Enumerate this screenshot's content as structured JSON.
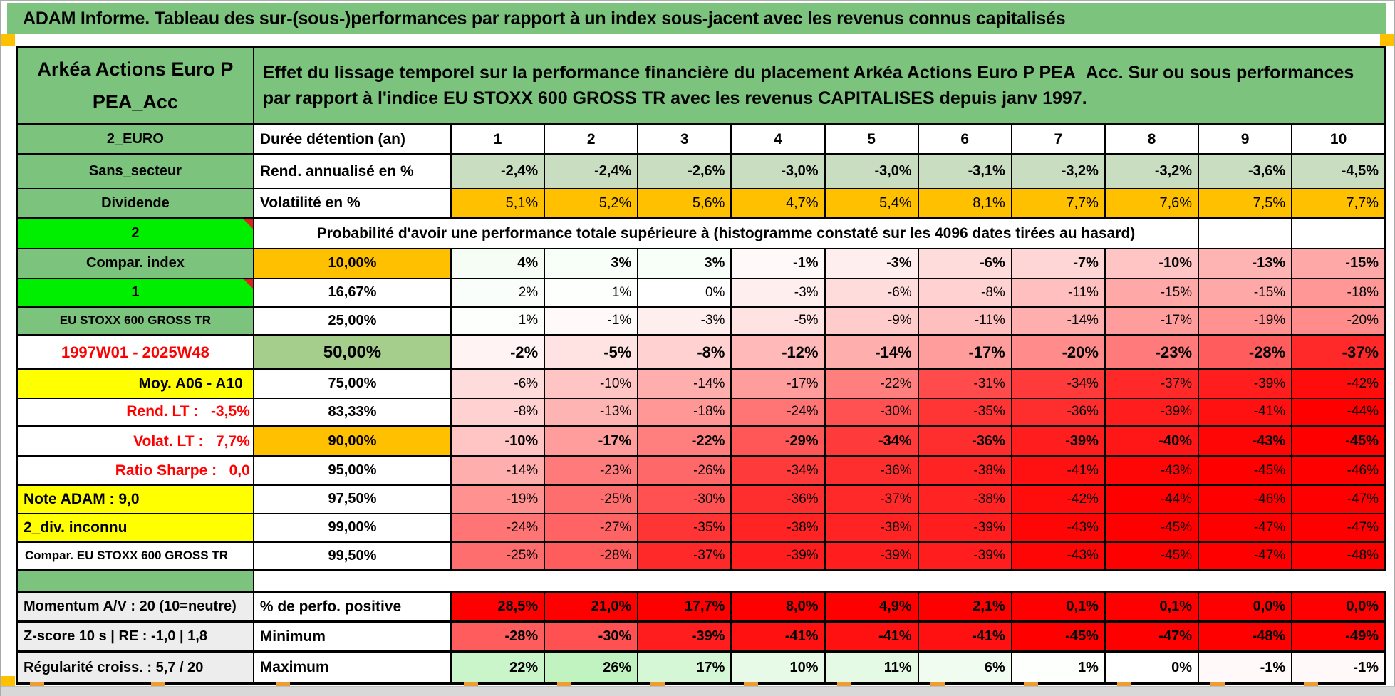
{
  "palette": {
    "header_green": "#7CC47D",
    "light_green_row": "#C9DDC1",
    "median_green": "#A5CD8C",
    "bright_green": "#00EE00",
    "orange": "#FFC000",
    "yellow": "#FFFF00",
    "alert_red": "#FF0000",
    "red_text": "#FF0000",
    "grey_label": "#EDEDED",
    "bottom_strip_grey": "#D8D8D8",
    "marker_orange": "#ED9D31"
  },
  "title_bar": {
    "text": "ADAM Informe. Tableau des sur-(sous-)performances par rapport à un index sous-jacent avec les revenus connus capitalisés"
  },
  "header": {
    "fund_name_lines": [
      "Arkéa Actions Euro P",
      "PEA_Acc"
    ],
    "description": "Effet du lissage temporel sur la performance financière du placement Arkéa Actions Euro P PEA_Acc. Sur ou sous performances par rapport à l'indice EU STOXX 600 GROSS TR avec les revenus CAPITALISES depuis janv 1997."
  },
  "chart_data": {
    "type": "table",
    "duration_row": {
      "label": "2_EURO",
      "metric": "Durée détention (an)",
      "values": [
        "1",
        "2",
        "3",
        "4",
        "5",
        "6",
        "7",
        "8",
        "9",
        "10"
      ]
    },
    "annualized_return_row": {
      "label": "Sans_secteur",
      "metric": "Rend. annualisé en %",
      "values": [
        "-2,4%",
        "-2,4%",
        "-2,6%",
        "-3,0%",
        "-3,0%",
        "-3,1%",
        "-3,2%",
        "-3,2%",
        "-3,6%",
        "-4,5%"
      ]
    },
    "volatility_row": {
      "label": "Dividende",
      "metric": "Volatilité en %",
      "values": [
        "5,1%",
        "5,2%",
        "5,6%",
        "4,7%",
        "5,4%",
        "8,1%",
        "7,7%",
        "7,6%",
        "7,5%",
        "7,7%"
      ]
    },
    "probability_banner": {
      "label": "2",
      "text": "Probabilité d'avoir une performance totale supérieure à (histogramme constaté sur les 4096 dates tirées au hasard)"
    },
    "probability_rows": [
      {
        "label": "Compar. index",
        "quantile": "10,00%",
        "values": [
          "4%",
          "3%",
          "3%",
          "-1%",
          "-3%",
          "-6%",
          "-7%",
          "-10%",
          "-13%",
          "-15%"
        ]
      },
      {
        "label": "1",
        "quantile": "16,67%",
        "values": [
          "2%",
          "1%",
          "0%",
          "-3%",
          "-6%",
          "-8%",
          "-11%",
          "-15%",
          "-15%",
          "-18%"
        ]
      },
      {
        "label": "EU STOXX 600 GROSS TR",
        "quantile": "25,00%",
        "values": [
          "1%",
          "-1%",
          "-3%",
          "-5%",
          "-9%",
          "-11%",
          "-14%",
          "-17%",
          "-19%",
          "-20%"
        ]
      },
      {
        "label": "1997W01 - 2025W48",
        "quantile": "50,00%",
        "values": [
          "-2%",
          "-5%",
          "-8%",
          "-12%",
          "-14%",
          "-17%",
          "-20%",
          "-23%",
          "-28%",
          "-37%"
        ]
      },
      {
        "label": "Moy. A06 - A10",
        "quantile": "75,00%",
        "values": [
          "-6%",
          "-10%",
          "-14%",
          "-17%",
          "-22%",
          "-31%",
          "-34%",
          "-37%",
          "-39%",
          "-42%"
        ]
      },
      {
        "label": "Rend. LT :   -3,5%",
        "quantile": "83,33%",
        "values": [
          "-8%",
          "-13%",
          "-18%",
          "-24%",
          "-30%",
          "-35%",
          "-36%",
          "-39%",
          "-41%",
          "-44%"
        ]
      },
      {
        "label": "Volat. LT :   7,7%",
        "quantile": "90,00%",
        "values": [
          "-10%",
          "-17%",
          "-22%",
          "-29%",
          "-34%",
          "-36%",
          "-39%",
          "-40%",
          "-43%",
          "-45%"
        ]
      },
      {
        "label": "Ratio Sharpe :   0,0",
        "quantile": "95,00%",
        "values": [
          "-14%",
          "-23%",
          "-26%",
          "-34%",
          "-36%",
          "-38%",
          "-41%",
          "-43%",
          "-45%",
          "-46%"
        ]
      },
      {
        "label": "Note ADAM : 9,0",
        "quantile": "97,50%",
        "values": [
          "-19%",
          "-25%",
          "-30%",
          "-36%",
          "-37%",
          "-38%",
          "-42%",
          "-44%",
          "-46%",
          "-47%"
        ]
      },
      {
        "label": "2_div. inconnu",
        "quantile": "99,00%",
        "values": [
          "-24%",
          "-27%",
          "-35%",
          "-38%",
          "-38%",
          "-39%",
          "-43%",
          "-45%",
          "-47%",
          "-47%"
        ]
      },
      {
        "label": "Compar. EU STOXX 600 GROSS TR",
        "quantile": "99,50%",
        "values": [
          "-25%",
          "-28%",
          "-37%",
          "-39%",
          "-39%",
          "-39%",
          "-43%",
          "-45%",
          "-47%",
          "-48%"
        ]
      }
    ],
    "summary_rows": [
      {
        "label": "Momentum A/V : 20 (10=neutre)",
        "metric": "% de perfo. positive",
        "values": [
          "28,5%",
          "21,0%",
          "17,7%",
          "8,0%",
          "4,9%",
          "2,1%",
          "0,1%",
          "0,1%",
          "0,0%",
          "0,0%"
        ]
      },
      {
        "label": "Z-score 10 s | RE : -1,0 | 1,8",
        "metric": "Minimum",
        "values": [
          "-28%",
          "-30%",
          "-39%",
          "-41%",
          "-41%",
          "-41%",
          "-45%",
          "-47%",
          "-48%",
          "-49%"
        ]
      },
      {
        "label": "Régularité croiss. : 5,7 / 20",
        "metric": "Maximum",
        "values": [
          "22%",
          "26%",
          "17%",
          "10%",
          "11%",
          "6%",
          "1%",
          "0%",
          "-1%",
          "-1%"
        ]
      }
    ]
  }
}
